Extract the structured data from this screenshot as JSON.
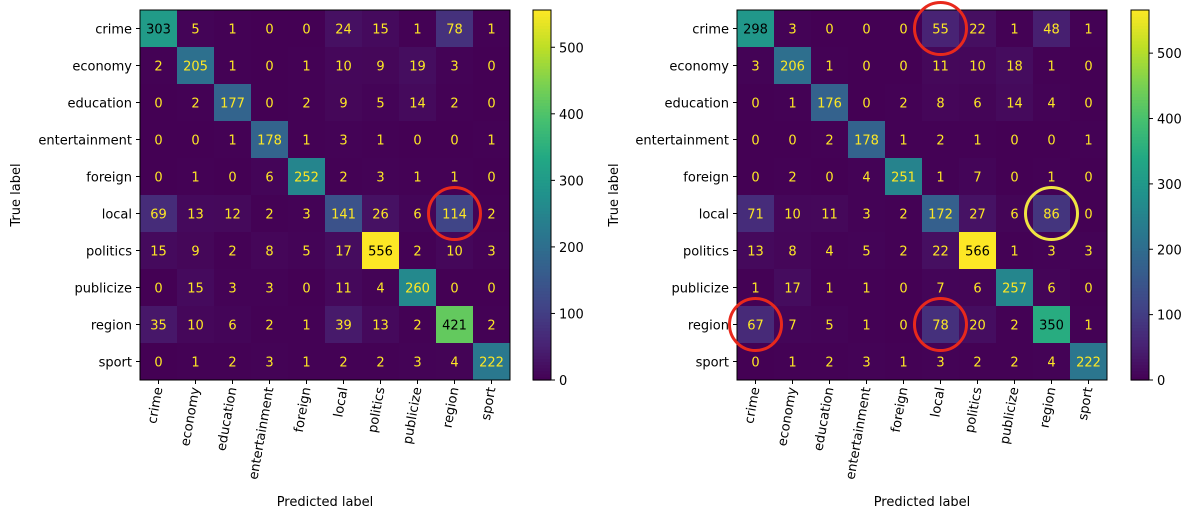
{
  "chart_data": [
    {
      "type": "heatmap",
      "title": "",
      "xlabel": "Predicted label",
      "ylabel": "True label",
      "categories": [
        "crime",
        "economy",
        "education",
        "entertainment",
        "foreign",
        "local",
        "politics",
        "publicize",
        "region",
        "sport"
      ],
      "matrix": [
        [
          303,
          5,
          1,
          0,
          0,
          24,
          15,
          1,
          78,
          1
        ],
        [
          2,
          205,
          1,
          0,
          1,
          10,
          9,
          19,
          3,
          0
        ],
        [
          0,
          2,
          177,
          0,
          2,
          9,
          5,
          14,
          2,
          0
        ],
        [
          0,
          0,
          1,
          178,
          1,
          3,
          1,
          0,
          0,
          1
        ],
        [
          0,
          1,
          0,
          6,
          252,
          2,
          3,
          1,
          1,
          0
        ],
        [
          69,
          13,
          12,
          2,
          3,
          141,
          26,
          6,
          114,
          2
        ],
        [
          15,
          9,
          2,
          8,
          5,
          17,
          556,
          2,
          10,
          3
        ],
        [
          0,
          15,
          3,
          3,
          0,
          11,
          4,
          260,
          0,
          0
        ],
        [
          35,
          10,
          6,
          2,
          1,
          39,
          13,
          2,
          421,
          2
        ],
        [
          0,
          1,
          2,
          3,
          1,
          2,
          2,
          3,
          4,
          222
        ]
      ],
      "colormap": "viridis",
      "vmin": 0,
      "vmax": 556,
      "colorbar_ticks": [
        0,
        100,
        200,
        300,
        400,
        500
      ],
      "text_color_dark": "#fde725",
      "text_color_light": "#000000",
      "highlights": [
        {
          "row": 5,
          "col": 8,
          "color": "#e8291c"
        }
      ]
    },
    {
      "type": "heatmap",
      "title": "",
      "xlabel": "Predicted label",
      "ylabel": "True label",
      "categories": [
        "crime",
        "economy",
        "education",
        "entertainment",
        "foreign",
        "local",
        "politics",
        "publicize",
        "region",
        "sport"
      ],
      "matrix": [
        [
          298,
          3,
          0,
          0,
          0,
          55,
          22,
          1,
          48,
          1
        ],
        [
          3,
          206,
          1,
          0,
          0,
          11,
          10,
          18,
          1,
          0
        ],
        [
          0,
          1,
          176,
          0,
          2,
          8,
          6,
          14,
          4,
          0
        ],
        [
          0,
          0,
          2,
          178,
          1,
          2,
          1,
          0,
          0,
          1
        ],
        [
          0,
          2,
          0,
          4,
          251,
          1,
          7,
          0,
          1,
          0
        ],
        [
          71,
          10,
          11,
          3,
          2,
          172,
          27,
          6,
          86,
          0
        ],
        [
          13,
          8,
          4,
          5,
          2,
          22,
          566,
          1,
          3,
          3
        ],
        [
          1,
          17,
          1,
          1,
          0,
          7,
          6,
          257,
          6,
          0
        ],
        [
          67,
          7,
          5,
          1,
          0,
          78,
          20,
          2,
          350,
          1
        ],
        [
          0,
          1,
          2,
          3,
          1,
          3,
          2,
          2,
          4,
          222
        ]
      ],
      "colormap": "viridis",
      "vmin": 0,
      "vmax": 566,
      "colorbar_ticks": [
        0,
        100,
        200,
        300,
        400,
        500
      ],
      "text_color_dark": "#fde725",
      "text_color_light": "#000000",
      "highlights": [
        {
          "row": 0,
          "col": 5,
          "color": "#e8291c"
        },
        {
          "row": 5,
          "col": 8,
          "color": "#f0e442"
        },
        {
          "row": 8,
          "col": 0,
          "color": "#e8291c"
        },
        {
          "row": 8,
          "col": 5,
          "color": "#e8291c"
        }
      ]
    }
  ]
}
